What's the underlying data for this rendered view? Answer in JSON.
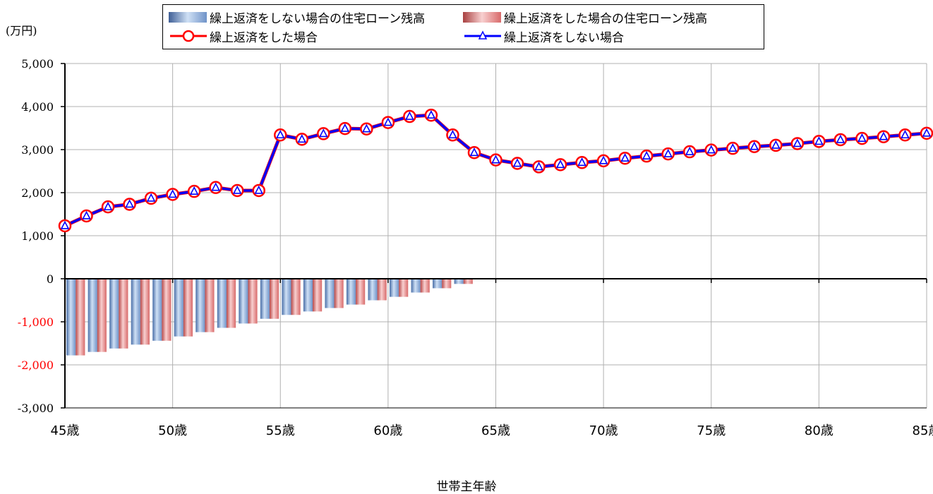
{
  "unit_label": "(万円)",
  "x_title": "世帯主年齢",
  "colors": {
    "line_with": "#ff0000",
    "line_without": "#0000ff",
    "bar_without": "#7fa6d9",
    "bar_with": "#e07878",
    "negative_tick": "#ff0000"
  },
  "legend": [
    {
      "label": "繰上返済をしない場合の住宅ローン残高",
      "kind": "bar-blue"
    },
    {
      "label": "繰上返済をした場合の住宅ローン残高",
      "kind": "bar-red"
    },
    {
      "label": "繰上返済をした場合",
      "kind": "line-red-circle"
    },
    {
      "label": "繰上返済をしない場合",
      "kind": "line-blue-triangle"
    }
  ],
  "chart_data": {
    "type": "bar+line",
    "xlabel": "世帯主年齢",
    "ylabel": "(万円)",
    "ylim": [
      -3000,
      5000
    ],
    "yticks": [
      5000,
      4000,
      3000,
      2000,
      1000,
      0,
      -1000,
      -2000,
      -3000
    ],
    "ytick_labels": [
      "5,000",
      "4,000",
      "3,000",
      "2,000",
      "1,000",
      "0",
      "-1,000",
      "-2,000",
      "-3,000"
    ],
    "x_ticks": [
      "45歳",
      "50歳",
      "55歳",
      "60歳",
      "65歳",
      "70歳",
      "75歳",
      "80歳",
      "85歳"
    ],
    "ages": [
      45,
      46,
      47,
      48,
      49,
      50,
      51,
      52,
      53,
      54,
      55,
      56,
      57,
      58,
      59,
      60,
      61,
      62,
      63,
      64,
      65,
      66,
      67,
      68,
      69,
      70,
      71,
      72,
      73,
      74,
      75,
      76,
      77,
      78,
      79,
      80,
      81,
      82,
      83,
      84,
      85
    ],
    "grid": true,
    "legend_position": "top",
    "series": [
      {
        "name": "繰上返済をしない場合",
        "type": "line",
        "values": [
          1230,
          1460,
          1670,
          1730,
          1870,
          1960,
          2030,
          2120,
          2050,
          2050,
          3340,
          3240,
          3370,
          3490,
          3480,
          3630,
          3770,
          3800,
          3340,
          2930,
          2760,
          2680,
          2600,
          2650,
          2700,
          2740,
          2800,
          2850,
          2900,
          2950,
          2990,
          3030,
          3070,
          3100,
          3140,
          3190,
          3230,
          3260,
          3300,
          3340,
          3380
        ]
      },
      {
        "name": "繰上返済をした場合",
        "type": "line",
        "values": [
          1230,
          1460,
          1670,
          1730,
          1870,
          1960,
          2030,
          2120,
          2050,
          2050,
          3340,
          3240,
          3370,
          3490,
          3480,
          3630,
          3770,
          3800,
          3340,
          2930,
          2760,
          2680,
          2600,
          2650,
          2700,
          2740,
          2800,
          2850,
          2900,
          2950,
          2990,
          3030,
          3070,
          3100,
          3140,
          3190,
          3230,
          3260,
          3300,
          3340,
          3380
        ]
      },
      {
        "name": "繰上返済をしない場合の住宅ローン残高",
        "type": "bar",
        "values": [
          -1780,
          -1700,
          -1620,
          -1530,
          -1440,
          -1340,
          -1240,
          -1140,
          -1040,
          -930,
          -840,
          -760,
          -680,
          -600,
          -500,
          -420,
          -320,
          -220,
          -120,
          0,
          0,
          0,
          0,
          0,
          0,
          0,
          0,
          0,
          0,
          0,
          0,
          0,
          0,
          0,
          0,
          0,
          0,
          0,
          0,
          0,
          0
        ]
      },
      {
        "name": "繰上返済をした場合の住宅ローン残高",
        "type": "bar",
        "values": [
          -1780,
          -1700,
          -1620,
          -1530,
          -1440,
          -1340,
          -1240,
          -1140,
          -1040,
          -930,
          -840,
          -760,
          -680,
          -600,
          -500,
          -420,
          -320,
          -220,
          -120,
          0,
          0,
          0,
          0,
          0,
          0,
          0,
          0,
          0,
          0,
          0,
          0,
          0,
          0,
          0,
          0,
          0,
          0,
          0,
          0,
          0,
          0
        ]
      }
    ]
  }
}
